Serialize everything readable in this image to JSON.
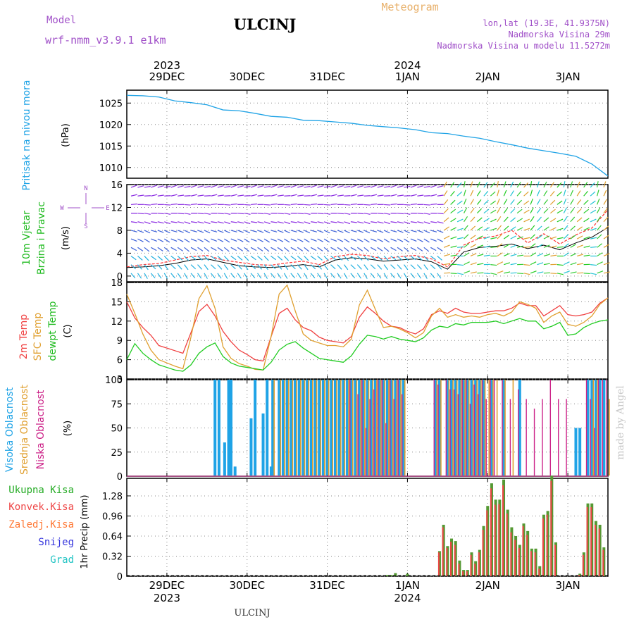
{
  "header": {
    "model_label": "Model",
    "model_name": "wrf-nmm_v3.9.1  e1km",
    "station": "ULCINJ",
    "product": "Meteogram",
    "coords": "lon,lat (19.3E, 41.9375N)",
    "elevation": "Nadmorska Visina 29m",
    "model_elevation": "Nadmorska Visina u modelu 11.5272m",
    "footer_station": "ULCINJ",
    "watermark": "made by Angel"
  },
  "time_axis": {
    "year_labels": [
      {
        "label": "2023",
        "day_index": 0
      },
      {
        "label": "2024",
        "day_index": 3
      }
    ],
    "day_labels": [
      "29DEC",
      "30DEC",
      "31DEC",
      "1JAN",
      "2JAN",
      "3JAN"
    ],
    "x_range_days": [
      -0.5,
      5.5
    ]
  },
  "colors": {
    "pressure": "#1fa3e6",
    "wind_speed": "#000000",
    "wind_gust": "#ff3333",
    "t2m": "#f04040",
    "sfc": "#e0a030",
    "dewpt": "#22cc22",
    "cloud_high": "#1fa3e6",
    "cloud_mid": "#e0a030",
    "cloud_low": "#cc2288",
    "precip_total": "#559933",
    "precip_conv": "#ee4444",
    "precip_snow": "#3333dd",
    "precip_hail": "#22c4c4",
    "precip_frz": "#ff7733"
  },
  "chart_data": [
    {
      "type": "line",
      "panel": "pressure",
      "ylabel_main": "Pritisak na nivou mora",
      "unit": "(hPa)",
      "ylim": [
        1007.5,
        1028
      ],
      "yticks": [
        1010,
        1015,
        1020,
        1025
      ],
      "grid": true,
      "x_days": [
        -0.5,
        -0.3,
        -0.1,
        0.1,
        0.3,
        0.5,
        0.7,
        0.9,
        1.1,
        1.3,
        1.5,
        1.7,
        1.9,
        2.1,
        2.3,
        2.5,
        2.7,
        2.9,
        3.1,
        3.3,
        3.5,
        3.7,
        3.9,
        4.1,
        4.3,
        4.5,
        4.7,
        4.9,
        5.1,
        5.3,
        5.5
      ],
      "series": [
        {
          "values": [
            1026.8,
            1026.7,
            1026.4,
            1025.5,
            1025.1,
            1024.6,
            1023.4,
            1023.2,
            1022.6,
            1021.9,
            1021.7,
            1021.0,
            1020.9,
            1020.6,
            1020.3,
            1019.8,
            1019.5,
            1019.2,
            1018.8,
            1018.1,
            1017.9,
            1017.3,
            1016.8,
            1016.0,
            1015.3,
            1014.5,
            1013.9,
            1013.3,
            1012.6,
            1010.8,
            1008.0
          ]
        }
      ]
    },
    {
      "type": "line",
      "panel": "wind",
      "ylabel_main": "10m Vjetar",
      "ylabel_sub": "Brzina i Pravac",
      "unit": "(m/s)",
      "compass": {
        "n": "N",
        "s": "S",
        "e": "E",
        "w": "W"
      },
      "ylim": [
        -1,
        16
      ],
      "yticks": [
        0,
        4,
        8,
        12,
        16
      ],
      "grid": true,
      "x_days": [
        -0.5,
        -0.3,
        -0.1,
        0.1,
        0.3,
        0.5,
        0.7,
        0.9,
        1.1,
        1.3,
        1.5,
        1.7,
        1.9,
        2.1,
        2.3,
        2.5,
        2.7,
        2.9,
        3.1,
        3.3,
        3.5,
        3.7,
        3.9,
        4.1,
        4.3,
        4.5,
        4.7,
        4.9,
        5.1,
        5.3,
        5.5
      ],
      "series": [
        {
          "name": "speed",
          "values": [
            1.5,
            1.6,
            1.8,
            2.2,
            2.8,
            3.0,
            2.4,
            1.8,
            1.6,
            1.5,
            1.7,
            2.0,
            1.6,
            2.8,
            3.2,
            3.0,
            2.6,
            2.8,
            3.0,
            2.5,
            1.2,
            4.2,
            5.0,
            5.2,
            5.6,
            4.8,
            5.4,
            4.6,
            5.8,
            6.8,
            8.5
          ]
        },
        {
          "name": "gust",
          "values": [
            1.6,
            2.0,
            2.2,
            2.8,
            3.4,
            3.6,
            2.8,
            2.4,
            2.0,
            1.9,
            2.3,
            2.6,
            2.0,
            3.4,
            3.8,
            3.6,
            3.0,
            3.4,
            3.6,
            3.0,
            1.6,
            5.4,
            6.6,
            7.0,
            8.0,
            5.8,
            7.4,
            5.6,
            7.2,
            8.4,
            11.6
          ]
        }
      ]
    },
    {
      "type": "line",
      "panel": "temperature",
      "ylabel_t2m": "2m Temp",
      "ylabel_sfc": "SFC Temp",
      "ylabel_dew": "dewpt Temp",
      "unit": "(C)",
      "ylim": [
        3,
        18
      ],
      "yticks": [
        3,
        6,
        9,
        12,
        15,
        18
      ],
      "grid": true,
      "x_days": [
        -0.5,
        -0.4,
        -0.3,
        -0.2,
        -0.1,
        0.0,
        0.1,
        0.2,
        0.3,
        0.4,
        0.5,
        0.6,
        0.7,
        0.8,
        0.9,
        1.0,
        1.1,
        1.2,
        1.3,
        1.4,
        1.5,
        1.6,
        1.7,
        1.8,
        1.9,
        2.0,
        2.1,
        2.2,
        2.3,
        2.4,
        2.5,
        2.6,
        2.7,
        2.8,
        2.9,
        3.0,
        3.1,
        3.2,
        3.3,
        3.4,
        3.5,
        3.6,
        3.7,
        3.8,
        3.9,
        4.0,
        4.1,
        4.2,
        4.3,
        4.4,
        4.5,
        4.6,
        4.7,
        4.8,
        4.9,
        5.0,
        5.1,
        5.2,
        5.3,
        5.4,
        5.5
      ],
      "series": [
        {
          "name": "t2m",
          "values": [
            15.0,
            12.5,
            11.0,
            9.8,
            8.2,
            7.8,
            7.4,
            7.0,
            10.2,
            13.5,
            14.6,
            12.8,
            10.4,
            8.8,
            7.5,
            6.8,
            6.0,
            5.8,
            9.6,
            13.2,
            14.0,
            12.2,
            11.0,
            10.5,
            9.5,
            9.0,
            8.8,
            8.6,
            9.6,
            12.6,
            14.2,
            13.2,
            12.0,
            11.2,
            11.0,
            10.4,
            10.0,
            10.8,
            13.0,
            13.6,
            13.2,
            14.0,
            13.4,
            13.2,
            13.2,
            13.4,
            13.6,
            13.6,
            14.0,
            14.8,
            14.4,
            14.4,
            12.8,
            13.6,
            14.4,
            13.0,
            12.8,
            13.0,
            13.4,
            14.8,
            15.6
          ]
        },
        {
          "name": "sfc",
          "values": [
            16.2,
            13.2,
            10.0,
            7.5,
            6.0,
            5.5,
            5.0,
            4.6,
            9.5,
            15.5,
            17.5,
            14.0,
            8.0,
            6.2,
            5.4,
            5.0,
            4.5,
            4.4,
            9.6,
            16.2,
            17.6,
            13.6,
            10.0,
            9.0,
            8.6,
            8.2,
            8.2,
            8.0,
            9.2,
            14.5,
            16.8,
            13.8,
            11.0,
            11.2,
            10.8,
            10.2,
            9.4,
            10.2,
            12.8,
            14.0,
            12.6,
            13.0,
            12.6,
            12.8,
            12.6,
            13.0,
            13.2,
            12.8,
            13.4,
            15.0,
            14.6,
            14.0,
            11.8,
            12.8,
            13.4,
            11.5,
            11.2,
            11.8,
            12.8,
            14.6,
            15.6
          ]
        },
        {
          "name": "dewpt",
          "values": [
            6.0,
            8.5,
            7.0,
            6.0,
            5.2,
            4.8,
            4.4,
            4.2,
            5.2,
            7.0,
            8.0,
            8.6,
            6.5,
            5.5,
            5.0,
            4.8,
            4.6,
            4.4,
            5.6,
            7.5,
            8.4,
            8.8,
            7.8,
            7.0,
            6.2,
            6.0,
            5.8,
            5.6,
            6.6,
            8.4,
            9.8,
            9.6,
            9.2,
            9.6,
            9.2,
            9.0,
            8.8,
            9.4,
            10.6,
            11.2,
            11.0,
            11.6,
            11.4,
            11.8,
            11.8,
            11.8,
            12.0,
            11.6,
            12.0,
            12.4,
            12.0,
            12.0,
            10.8,
            11.2,
            11.8,
            9.8,
            10.0,
            11.0,
            11.6,
            12.0,
            12.2
          ]
        }
      ]
    },
    {
      "type": "bar",
      "panel": "clouds",
      "ylabel_high": "Visoka Oblacnost",
      "ylabel_mid": "Srednja Oblacnost",
      "ylabel_low": "Niska Oblacnost",
      "unit": "(%)",
      "ylim": [
        0,
        100
      ],
      "yticks": [
        0,
        25,
        50,
        75,
        100
      ],
      "grid": true,
      "x_days": [
        0.6,
        0.65,
        0.72,
        0.77,
        0.8,
        0.85,
        1.05,
        1.1,
        1.2,
        1.25,
        1.3,
        1.32,
        1.4,
        1.45,
        1.5,
        1.55,
        1.6,
        1.65,
        1.7,
        1.75,
        1.8,
        1.85,
        1.9,
        1.95,
        2.0,
        2.05,
        2.1,
        2.15,
        2.2,
        2.25,
        2.3,
        2.35,
        2.4,
        2.45,
        2.5,
        2.55,
        2.6,
        2.65,
        2.7,
        2.75,
        2.8,
        2.85,
        2.9,
        2.95,
        3.35,
        3.4,
        3.5,
        3.55,
        3.6,
        3.65,
        3.7,
        3.75,
        3.8,
        3.85,
        3.9,
        3.95,
        4.0,
        4.05,
        4.1,
        4.2,
        4.3,
        4.4,
        4.5,
        4.6,
        4.7,
        4.8,
        4.9,
        5.0,
        5.1,
        5.15,
        5.25,
        5.3,
        5.35,
        5.4,
        5.45,
        5.5
      ],
      "series": [
        {
          "name": "high",
          "values": [
            100,
            100,
            35,
            100,
            100,
            10,
            60,
            100,
            65,
            100,
            10,
            100,
            100,
            100,
            100,
            100,
            100,
            100,
            100,
            100,
            100,
            100,
            100,
            100,
            100,
            100,
            100,
            100,
            100,
            100,
            100,
            100,
            100,
            100,
            100,
            100,
            100,
            100,
            100,
            100,
            100,
            100,
            100,
            100,
            100,
            100,
            100,
            100,
            100,
            100,
            100,
            100,
            100,
            100,
            100,
            100,
            0,
            100,
            0,
            100,
            0,
            100,
            0,
            0,
            0,
            0,
            0,
            0,
            50,
            50,
            100,
            100,
            100,
            100,
            100,
            0
          ]
        },
        {
          "name": "mid",
          "values": [
            0,
            0,
            0,
            0,
            0,
            0,
            0,
            0,
            0,
            0,
            0,
            100,
            100,
            100,
            100,
            100,
            100,
            100,
            100,
            100,
            100,
            100,
            100,
            100,
            100,
            100,
            100,
            100,
            100,
            100,
            100,
            100,
            100,
            100,
            100,
            100,
            100,
            100,
            100,
            100,
            100,
            100,
            100,
            100,
            100,
            100,
            100,
            100,
            100,
            100,
            100,
            100,
            100,
            100,
            100,
            100,
            100,
            100,
            100,
            100,
            100,
            0,
            0,
            0,
            0,
            0,
            0,
            0,
            0,
            0,
            0,
            100,
            100,
            0,
            0,
            80
          ]
        },
        {
          "name": "low",
          "values": [
            0,
            0,
            0,
            0,
            0,
            0,
            0,
            0,
            0,
            0,
            0,
            0,
            0,
            0,
            0,
            0,
            0,
            0,
            0,
            0,
            0,
            0,
            0,
            0,
            0,
            0,
            0,
            0,
            0,
            0,
            100,
            0,
            85,
            100,
            50,
            80,
            90,
            100,
            100,
            55,
            100,
            80,
            100,
            85,
            100,
            95,
            100,
            90,
            90,
            85,
            100,
            100,
            75,
            95,
            85,
            100,
            80,
            100,
            100,
            100,
            80,
            90,
            80,
            70,
            80,
            100,
            80,
            80,
            0,
            0,
            100,
            80,
            50,
            100,
            100,
            100
          ]
        }
      ]
    },
    {
      "type": "bar",
      "panel": "precipitation",
      "ylabel_total": "Ukupna  Kisa",
      "ylabel_conv": "Konvek.Kisa",
      "ylabel_frz": "Zaledj.Kisa",
      "ylabel_snow": "Snijeg",
      "ylabel_hail": "Grad",
      "unit": "1hr Precip (mm)",
      "ylim": [
        0,
        1.56
      ],
      "yticks": [
        0,
        0.32,
        0.64,
        0.96,
        1.28
      ],
      "grid": true,
      "x_days": [
        2.75,
        2.8,
        2.85,
        3.0,
        3.4,
        3.45,
        3.5,
        3.55,
        3.6,
        3.65,
        3.7,
        3.75,
        3.8,
        3.85,
        3.9,
        3.95,
        4.0,
        4.05,
        4.1,
        4.15,
        4.2,
        4.25,
        4.3,
        4.35,
        4.4,
        4.45,
        4.5,
        4.55,
        4.6,
        4.65,
        4.7,
        4.75,
        4.8,
        4.85,
        4.9,
        4.95,
        5.0,
        5.05,
        5.1,
        5.15,
        5.2,
        5.25,
        5.3,
        5.35,
        5.4,
        5.45,
        5.5
      ],
      "series": [
        {
          "name": "total",
          "values": [
            0.02,
            0.02,
            0.05,
            0.04,
            0.4,
            0.82,
            0.48,
            0.6,
            0.56,
            0.25,
            0.1,
            0.1,
            0.38,
            0.24,
            0.42,
            0.8,
            1.12,
            1.48,
            1.22,
            1.22,
            1.54,
            1.06,
            0.78,
            0.64,
            0.5,
            0.84,
            0.72,
            0.44,
            0.44,
            0.16,
            0.98,
            1.04,
            1.6,
            0.54,
            0.0,
            0.0,
            0.0,
            0.0,
            0.0,
            0.04,
            0.38,
            1.16,
            1.16,
            0.88,
            0.82,
            0.46,
            0.0
          ]
        },
        {
          "name": "convective",
          "values": [
            0,
            0,
            0,
            0,
            0.38,
            0.78,
            0.45,
            0.55,
            0.5,
            0.2,
            0.08,
            0.08,
            0.34,
            0.2,
            0.38,
            0.74,
            1.05,
            1.4,
            1.14,
            1.15,
            1.45,
            1.0,
            0.7,
            0.58,
            0.45,
            0.8,
            0.66,
            0.4,
            0.38,
            0.12,
            0.92,
            0.98,
            1.52,
            0.5,
            0,
            0,
            0,
            0,
            0,
            0.02,
            0.34,
            1.1,
            1.1,
            0.82,
            0.76,
            0.42,
            0
          ]
        }
      ]
    }
  ]
}
